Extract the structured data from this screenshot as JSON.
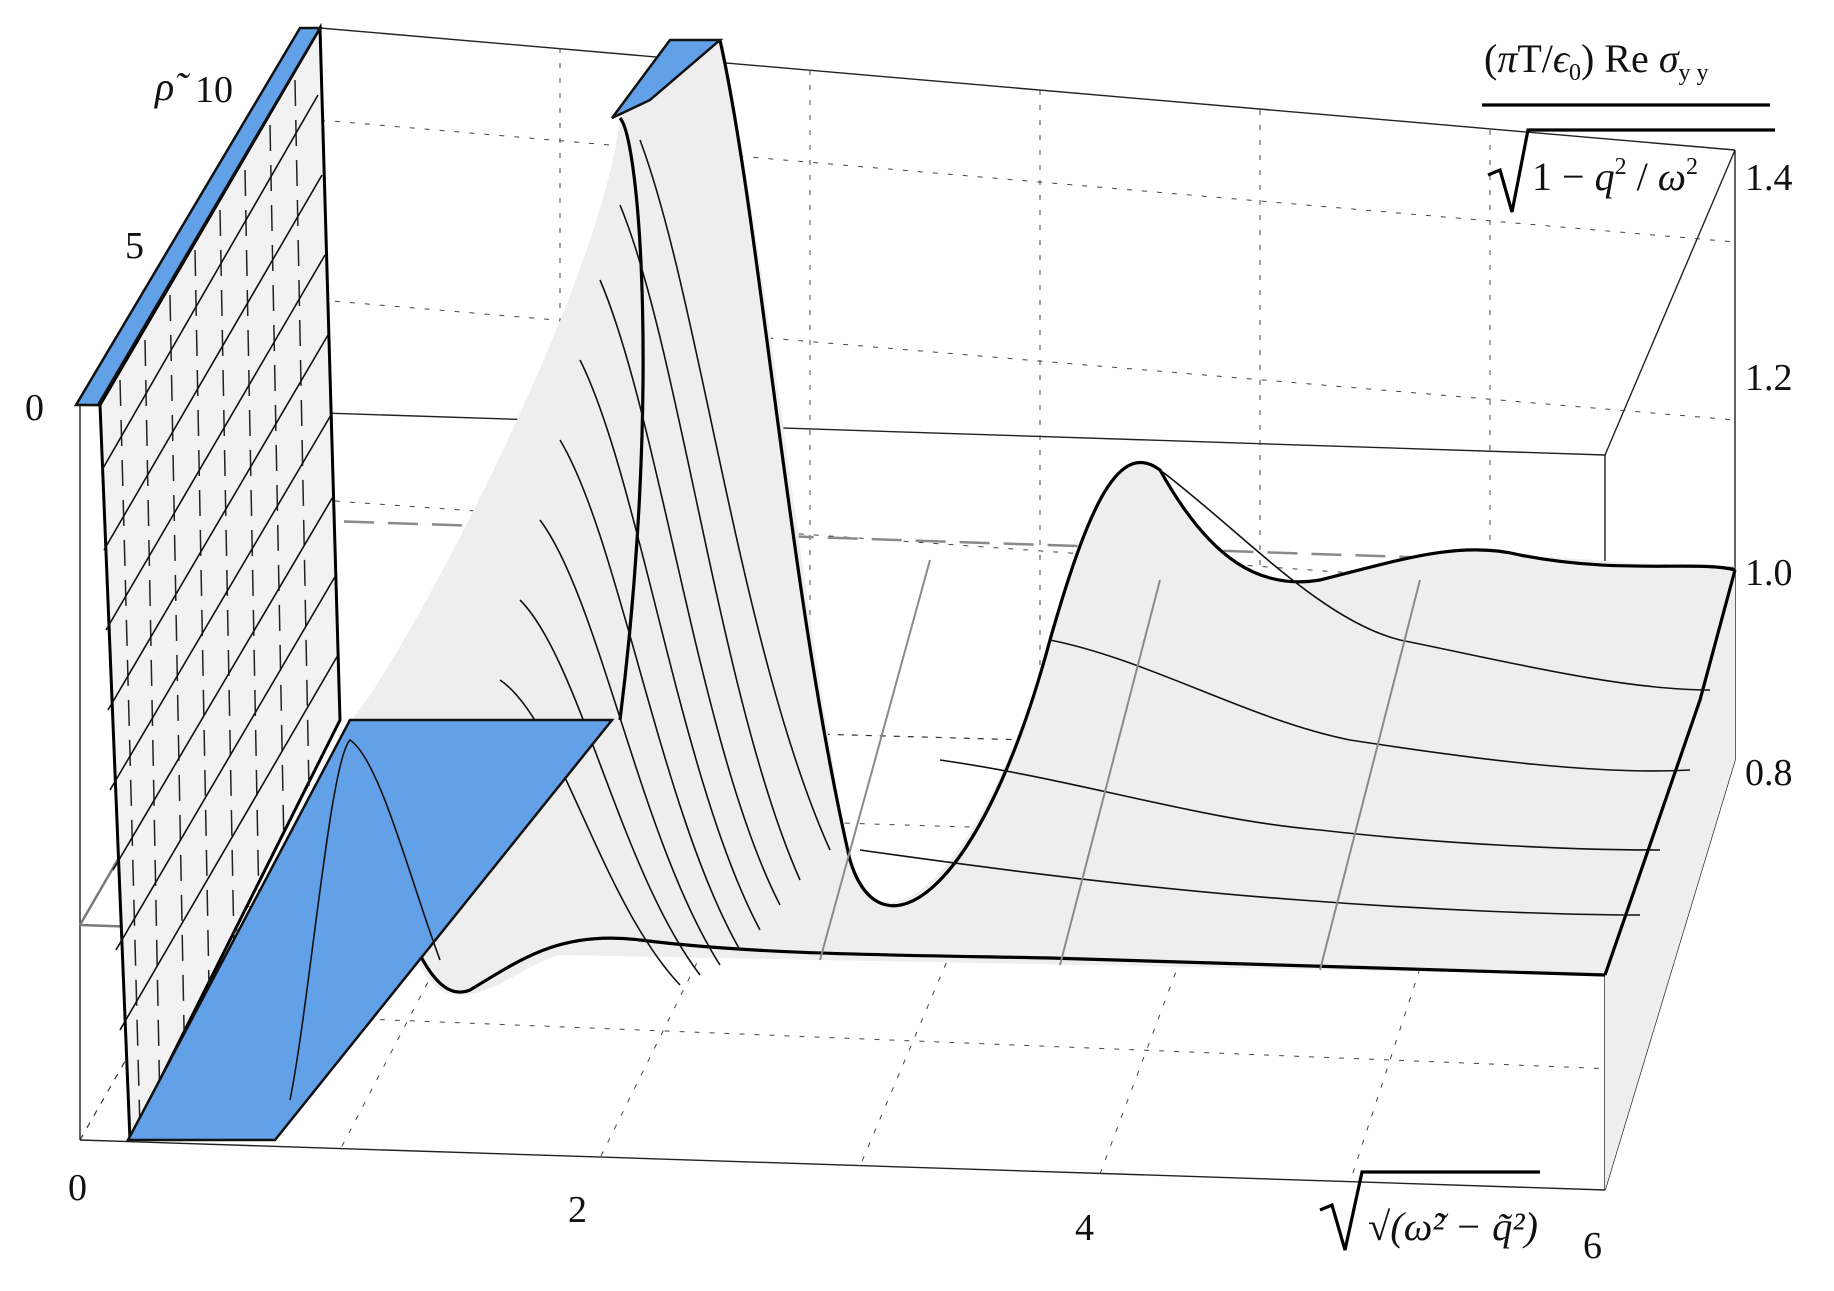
{
  "chart_data": {
    "type": "surface3d",
    "x_axis": {
      "label": "√(ω̃² − q̃²)",
      "ticks": [
        "0",
        "2",
        "4",
        "6"
      ],
      "range": [
        0,
        6
      ]
    },
    "y_axis": {
      "label": "ρ̃",
      "ticks": [
        "0",
        "5",
        "10"
      ],
      "range": [
        0,
        10
      ]
    },
    "z_axis": {
      "label_numerator": "(πT/ϵ0) Re σyy",
      "label_numerator_parts": {
        "prefix": "(",
        "pi": "π",
        "T": "T/",
        "eps": "ϵ",
        "sub0": "0",
        "close": ") Re ",
        "sigma": "σ",
        "sub": "y y"
      },
      "label_denominator": "√(1 − q²/ω²)",
      "label_denominator_parts": {
        "one": "1 − ",
        "q": "q",
        "sq1": "2",
        "slash": " / ",
        "w": "ω",
        "sq2": "2"
      },
      "ticks": [
        "0.8",
        "1.0",
        "1.2",
        "1.4"
      ],
      "range": [
        0.8,
        1.4
      ]
    },
    "reference_plane_z": 1.0,
    "description_series": [
      {
        "rho": 0,
        "profile": [
          [
            0.7,
            1.45
          ],
          [
            1.2,
            1.45
          ],
          [
            2.0,
            0.86
          ],
          [
            3.0,
            0.8
          ],
          [
            4.0,
            0.8
          ],
          [
            6.0,
            0.8
          ]
        ]
      },
      {
        "rho": 10,
        "profile": [
          [
            0.2,
            1.45
          ],
          [
            1.2,
            1.45
          ],
          [
            2.0,
            1.05
          ],
          [
            3.0,
            0.93
          ],
          [
            4.0,
            1.11
          ],
          [
            4.8,
            0.96
          ],
          [
            5.5,
            1.0
          ],
          [
            6.0,
            1.0
          ]
        ]
      }
    ],
    "colors": {
      "surface": "#eeeeee",
      "mesh": "#111111",
      "cap": "#62a0e8",
      "reference": "#7a7a7a"
    }
  }
}
